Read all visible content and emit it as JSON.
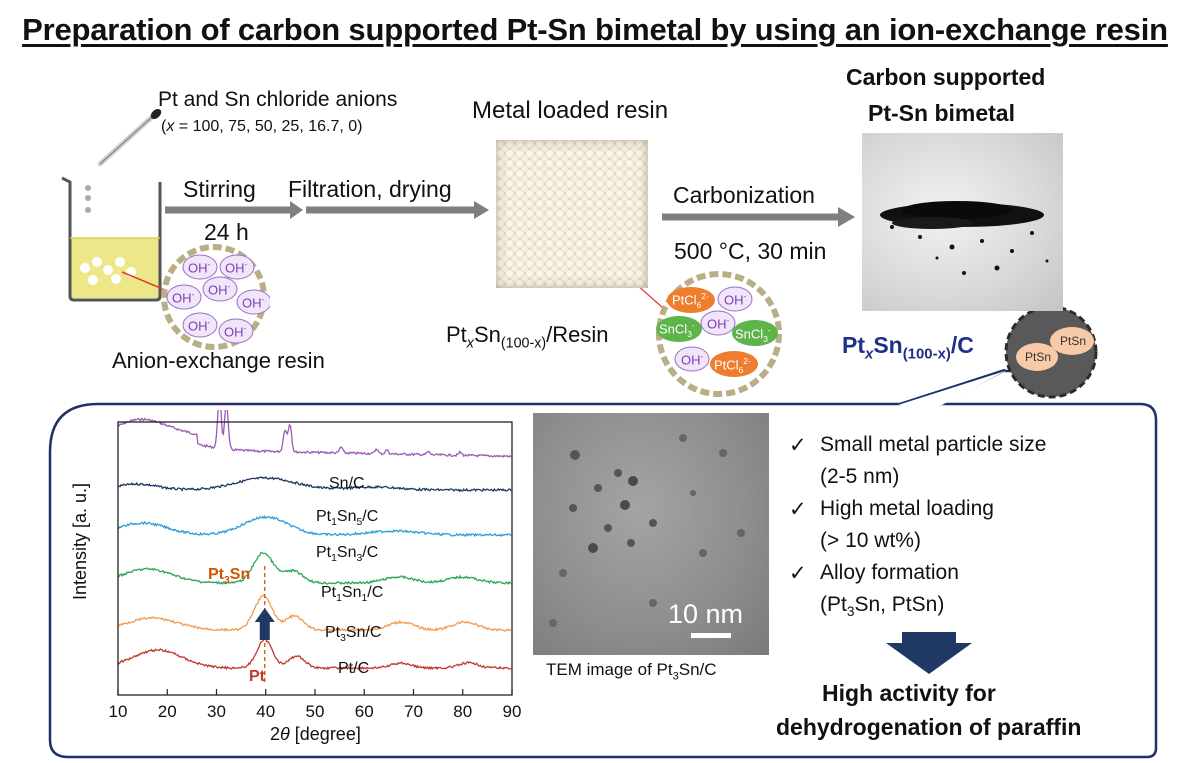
{
  "title": "Preparation of carbon supported Pt-Sn bimetal by using an ion-exchange resin",
  "labels": {
    "pt_sn_anions": "Pt and Sn chloride anions",
    "x_values_prefix": "(",
    "x_var": "x",
    "x_values_rest": " = 100, 75, 50, 25, 16.7, 0)",
    "stirring": "Stirring",
    "stirring_time": "24 h",
    "filtration": "Filtration, drying",
    "metal_loaded": "Metal loaded resin",
    "carbonization": "Carbonization",
    "carbonization_cond": "500 °C, 30 min",
    "carbon_supported_1": "Carbon supported",
    "carbon_supported_2": "Pt-Sn bimetal",
    "anion_resin": "Anion-exchange resin",
    "resin_formula": {
      "pt": "Pt",
      "x": "x",
      "sn": "Sn",
      "sub": "(100-x)",
      "rest": "/Resin"
    },
    "carbon_formula": {
      "pt": "Pt",
      "x": "x",
      "sn": "Sn",
      "sub": "(100-x)",
      "rest": "/C"
    }
  },
  "ions": {
    "oh": "OH",
    "oh_sup": "-",
    "ptcl": "PtCl",
    "ptcl_sub": "6",
    "ptcl_sup": "2-",
    "sncl": "SnCl",
    "sncl_sub": "3",
    "sncl_sup": "-",
    "ptsn": "PtSn"
  },
  "colors": {
    "solution": "#ece889",
    "resin_ring": "#b9ae85",
    "oh_fill": "#f0e6f7",
    "oh_stroke": "#9c6cc9",
    "oh_text": "#7b3fb8",
    "ptcl_fill": "#ef7d2e",
    "sncl_fill": "#5eb34a",
    "ptsn_fill": "#f9caa7",
    "carbon_circle": "#595959",
    "arrow": "#7f7f7f",
    "navy": "#1f2f8a"
  },
  "chart_data": {
    "type": "line",
    "xlabel_prefix": "2",
    "xlabel_theta": "θ",
    "xlabel_suffix": " [degree]",
    "ylabel": "Intensity [a. u.]",
    "xlim": [
      10,
      90
    ],
    "xticks": [
      10,
      20,
      30,
      40,
      50,
      60,
      70,
      80,
      90
    ],
    "grid": false,
    "series": [
      {
        "name": "Sn/C",
        "color": "#9b59b6",
        "label": "Sn/C"
      },
      {
        "name": "Pt1Sn5/C",
        "color": "#1f3864",
        "label_parts": [
          "Pt",
          "1",
          "Sn",
          "5",
          "/C"
        ]
      },
      {
        "name": "Pt1Sn3/C",
        "color": "#2e9fd8",
        "label_parts": [
          "Pt",
          "1",
          "Sn",
          "3",
          "/C"
        ]
      },
      {
        "name": "Pt1Sn1/C",
        "color": "#2ca65a",
        "label_parts": [
          "Pt",
          "1",
          "Sn",
          "1",
          "/C"
        ]
      },
      {
        "name": "Pt3Sn/C",
        "color": "#f39b4c",
        "label_parts": [
          "Pt",
          "3",
          "Sn",
          "",
          "/C"
        ]
      },
      {
        "name": "Pt/C",
        "color": "#c0392b",
        "label": "Pt/C"
      }
    ],
    "annotations": {
      "pt3sn": {
        "text": "Pt",
        "sub": "3",
        "rest": "Sn",
        "x": 39.8,
        "color": "#d35400"
      },
      "pt": {
        "text": "Pt",
        "x": 39.8,
        "color": "#c0392b"
      }
    }
  },
  "tem": {
    "scale": "10 nm",
    "caption_prefix": "TEM image of Pt",
    "caption_sub": "3",
    "caption_rest": "Sn/C"
  },
  "features": [
    {
      "check": "✓",
      "line1": "Small metal particle size",
      "line2": "(2-5 nm)"
    },
    {
      "check": "✓",
      "line1": "High metal loading",
      "line2": "(> 10 wt%)"
    },
    {
      "check": "✓",
      "line1": "Alloy formation",
      "line2_parts": [
        "(Pt",
        "3",
        "Sn, PtSn)"
      ]
    }
  ],
  "conclusion": {
    "line1": "High activity for",
    "line2": "dehydrogenation of paraffin"
  }
}
